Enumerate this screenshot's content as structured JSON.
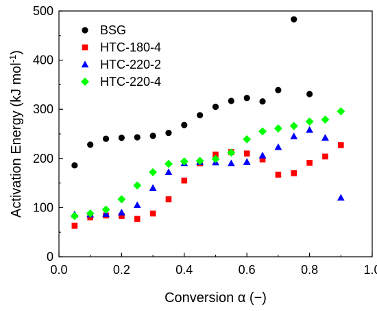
{
  "chart_data": {
    "type": "scatter",
    "title": "",
    "xlabel": "Conversion α (−)",
    "ylabel": "Activation Energy (kJ mol",
    "ylabel_superscript": "-1",
    "ylabel_suffix": ")",
    "xlim": [
      0.0,
      1.0
    ],
    "ylim": [
      0,
      500
    ],
    "x_ticks": [
      0.0,
      0.2,
      0.4,
      0.6,
      0.8,
      1.0
    ],
    "x_tick_labels": [
      "0.0",
      "0.2",
      "0.4",
      "0.6",
      "0.8",
      "1.0"
    ],
    "y_ticks": [
      0,
      100,
      200,
      300,
      400,
      500
    ],
    "y_tick_labels": [
      "0",
      "100",
      "200",
      "300",
      "400",
      "500"
    ],
    "grid": false,
    "legend_position": "top-left",
    "series": [
      {
        "name": "BSG",
        "marker": "circle",
        "color": "#000000",
        "x": [
          0.05,
          0.1,
          0.15,
          0.2,
          0.25,
          0.3,
          0.35,
          0.4,
          0.45,
          0.5,
          0.55,
          0.6,
          0.65,
          0.7,
          0.75,
          0.8
        ],
        "y": [
          186,
          228,
          240,
          242,
          243,
          246,
          252,
          268,
          288,
          305,
          317,
          323,
          316,
          339,
          483,
          331
        ]
      },
      {
        "name": "HTC-180-4",
        "marker": "square",
        "color": "#ff0000",
        "x": [
          0.05,
          0.1,
          0.15,
          0.2,
          0.25,
          0.3,
          0.35,
          0.4,
          0.45,
          0.5,
          0.55,
          0.6,
          0.65,
          0.7,
          0.75,
          0.8,
          0.85,
          0.9
        ],
        "y": [
          63,
          80,
          84,
          83,
          77,
          88,
          117,
          155,
          190,
          208,
          213,
          210,
          198,
          167,
          170,
          191,
          204,
          227
        ]
      },
      {
        "name": "HTC-220-2",
        "marker": "triangle",
        "color": "#0000ff",
        "x": [
          0.05,
          0.1,
          0.15,
          0.2,
          0.25,
          0.3,
          0.35,
          0.4,
          0.45,
          0.5,
          0.55,
          0.6,
          0.65,
          0.7,
          0.75,
          0.8,
          0.85,
          0.9
        ],
        "y": [
          86,
          86,
          87,
          90,
          105,
          140,
          172,
          190,
          193,
          192,
          190,
          193,
          206,
          223,
          245,
          258,
          242,
          120
        ]
      },
      {
        "name": "HTC-220-4",
        "marker": "diamond",
        "color": "#00ff00",
        "x": [
          0.05,
          0.1,
          0.15,
          0.2,
          0.25,
          0.3,
          0.35,
          0.4,
          0.45,
          0.5,
          0.55,
          0.6,
          0.65,
          0.7,
          0.75,
          0.8,
          0.85,
          0.9
        ],
        "y": [
          83,
          88,
          96,
          117,
          145,
          172,
          189,
          194,
          195,
          199,
          212,
          239,
          255,
          261,
          266,
          275,
          279,
          296
        ]
      }
    ]
  }
}
